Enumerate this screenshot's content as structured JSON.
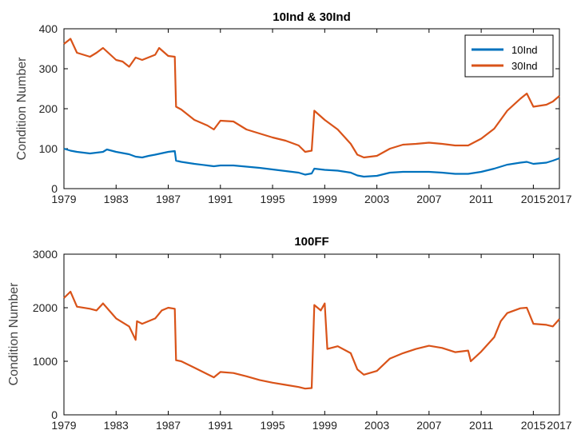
{
  "chart_data": [
    {
      "type": "line",
      "title": "10Ind & 30Ind",
      "ylabel": "Condition Number",
      "xlabel": "",
      "xlim": [
        1979,
        2017
      ],
      "ylim": [
        0,
        400
      ],
      "xticks": [
        "1979",
        "1983",
        "1987",
        "1991",
        "1995",
        "1999",
        "2003",
        "2007",
        "2011",
        "2015",
        "2017"
      ],
      "yticks": [
        "0",
        "100",
        "200",
        "300",
        "400"
      ],
      "legend_position": "top-right",
      "grid": false,
      "series": [
        {
          "name": "10Ind",
          "color": "#0072BD",
          "points": [
            [
              1979,
              100
            ],
            [
              1979.5,
              95
            ],
            [
              1980,
              92
            ],
            [
              1981,
              88
            ],
            [
              1982,
              92
            ],
            [
              1982.3,
              98
            ],
            [
              1983,
              92
            ],
            [
              1984,
              86
            ],
            [
              1984.5,
              80
            ],
            [
              1985,
              78
            ],
            [
              1985.5,
              82
            ],
            [
              1986,
              85
            ],
            [
              1987,
              92
            ],
            [
              1987.5,
              94
            ],
            [
              1987.6,
              70
            ],
            [
              1988,
              67
            ],
            [
              1989,
              62
            ],
            [
              1990,
              58
            ],
            [
              1990.5,
              56
            ],
            [
              1991,
              58
            ],
            [
              1992,
              58
            ],
            [
              1993,
              55
            ],
            [
              1994,
              52
            ],
            [
              1995,
              48
            ],
            [
              1996,
              44
            ],
            [
              1997,
              40
            ],
            [
              1997.5,
              35
            ],
            [
              1998,
              38
            ],
            [
              1998.2,
              50
            ],
            [
              1999,
              47
            ],
            [
              2000,
              45
            ],
            [
              2001,
              40
            ],
            [
              2001.5,
              33
            ],
            [
              2002,
              30
            ],
            [
              2003,
              32
            ],
            [
              2004,
              40
            ],
            [
              2005,
              42
            ],
            [
              2006,
              42
            ],
            [
              2007,
              42
            ],
            [
              2008,
              40
            ],
            [
              2009,
              37
            ],
            [
              2010,
              37
            ],
            [
              2011,
              42
            ],
            [
              2012,
              50
            ],
            [
              2013,
              60
            ],
            [
              2014,
              65
            ],
            [
              2014.5,
              67
            ],
            [
              2015,
              62
            ],
            [
              2016,
              65
            ],
            [
              2016.5,
              70
            ],
            [
              2017,
              76
            ]
          ]
        },
        {
          "name": "30Ind",
          "color": "#D95319",
          "points": [
            [
              1979,
              362
            ],
            [
              1979.5,
              375
            ],
            [
              1980,
              340
            ],
            [
              1981,
              330
            ],
            [
              1981.5,
              340
            ],
            [
              1982,
              352
            ],
            [
              1983,
              322
            ],
            [
              1983.5,
              318
            ],
            [
              1984,
              305
            ],
            [
              1984.5,
              328
            ],
            [
              1985,
              322
            ],
            [
              1986,
              335
            ],
            [
              1986.3,
              352
            ],
            [
              1987,
              332
            ],
            [
              1987.5,
              330
            ],
            [
              1987.6,
              205
            ],
            [
              1988,
              198
            ],
            [
              1989,
              172
            ],
            [
              1990,
              158
            ],
            [
              1990.5,
              148
            ],
            [
              1991,
              170
            ],
            [
              1992,
              168
            ],
            [
              1993,
              148
            ],
            [
              1994,
              138
            ],
            [
              1995,
              128
            ],
            [
              1996,
              120
            ],
            [
              1997,
              108
            ],
            [
              1997.5,
              92
            ],
            [
              1998,
              95
            ],
            [
              1998.2,
              195
            ],
            [
              1999,
              172
            ],
            [
              2000,
              148
            ],
            [
              2001,
              112
            ],
            [
              2001.5,
              85
            ],
            [
              2002,
              78
            ],
            [
              2003,
              82
            ],
            [
              2004,
              100
            ],
            [
              2005,
              110
            ],
            [
              2006,
              112
            ],
            [
              2007,
              115
            ],
            [
              2008,
              112
            ],
            [
              2009,
              108
            ],
            [
              2010,
              108
            ],
            [
              2011,
              125
            ],
            [
              2012,
              150
            ],
            [
              2013,
              195
            ],
            [
              2014,
              225
            ],
            [
              2014.5,
              238
            ],
            [
              2015,
              205
            ],
            [
              2016,
              210
            ],
            [
              2016.5,
              218
            ],
            [
              2017,
              232
            ]
          ]
        }
      ]
    },
    {
      "type": "line",
      "title": "100FF",
      "ylabel": "Condition Number",
      "xlabel": "",
      "xlim": [
        1979,
        2017
      ],
      "ylim": [
        0,
        3000
      ],
      "xticks": [
        "1979",
        "1983",
        "1987",
        "1991",
        "1995",
        "1999",
        "2003",
        "2007",
        "2011",
        "2015",
        "2017"
      ],
      "yticks": [
        "0",
        "1000",
        "2000",
        "3000"
      ],
      "grid": false,
      "series": [
        {
          "name": "",
          "color": "#D95319",
          "points": [
            [
              1979,
              2180
            ],
            [
              1979.5,
              2300
            ],
            [
              1980,
              2020
            ],
            [
              1981,
              1980
            ],
            [
              1981.5,
              1950
            ],
            [
              1982,
              2080
            ],
            [
              1983,
              1800
            ],
            [
              1984,
              1650
            ],
            [
              1984.5,
              1400
            ],
            [
              1984.6,
              1750
            ],
            [
              1985,
              1700
            ],
            [
              1986,
              1800
            ],
            [
              1986.5,
              1950
            ],
            [
              1987,
              2000
            ],
            [
              1987.5,
              1980
            ],
            [
              1987.6,
              1020
            ],
            [
              1988,
              1000
            ],
            [
              1989,
              880
            ],
            [
              1990,
              760
            ],
            [
              1990.5,
              700
            ],
            [
              1991,
              800
            ],
            [
              1992,
              780
            ],
            [
              1993,
              720
            ],
            [
              1994,
              650
            ],
            [
              1995,
              600
            ],
            [
              1996,
              560
            ],
            [
              1997,
              520
            ],
            [
              1997.5,
              490
            ],
            [
              1998,
              500
            ],
            [
              1998.2,
              2050
            ],
            [
              1998.7,
              1950
            ],
            [
              1999,
              2080
            ],
            [
              1999.2,
              1230
            ],
            [
              2000,
              1280
            ],
            [
              2001,
              1150
            ],
            [
              2001.5,
              850
            ],
            [
              2002,
              750
            ],
            [
              2003,
              820
            ],
            [
              2004,
              1050
            ],
            [
              2005,
              1150
            ],
            [
              2006,
              1230
            ],
            [
              2007,
              1290
            ],
            [
              2008,
              1250
            ],
            [
              2009,
              1170
            ],
            [
              2010,
              1200
            ],
            [
              2010.2,
              1000
            ],
            [
              2011,
              1180
            ],
            [
              2012,
              1450
            ],
            [
              2012.5,
              1750
            ],
            [
              2013,
              1900
            ],
            [
              2014,
              1990
            ],
            [
              2014.5,
              2000
            ],
            [
              2015,
              1700
            ],
            [
              2016,
              1680
            ],
            [
              2016.5,
              1650
            ],
            [
              2017,
              1790
            ]
          ]
        }
      ]
    }
  ]
}
